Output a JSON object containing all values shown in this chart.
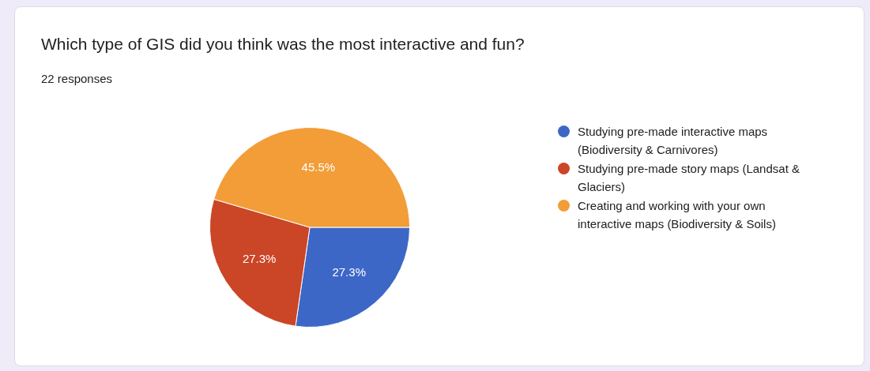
{
  "chart_data": {
    "type": "pie",
    "title": "Which type of GIS did you think was the most interactive and fun?",
    "subtitle": "22 responses",
    "categories": [
      "Studying pre-made interactive maps (Biodiversity & Carnivores)",
      "Studying pre-made story maps (Landsat & Glaciers)",
      "Creating and working with your own interactive maps (Biodiversity & Soils)"
    ],
    "values": [
      27.3,
      27.3,
      45.5
    ],
    "colors": [
      "#3d67c7",
      "#cb4527",
      "#f29d38"
    ],
    "value_labels": [
      "27.3%",
      "27.3%",
      "45.5%"
    ],
    "legend": "right"
  }
}
